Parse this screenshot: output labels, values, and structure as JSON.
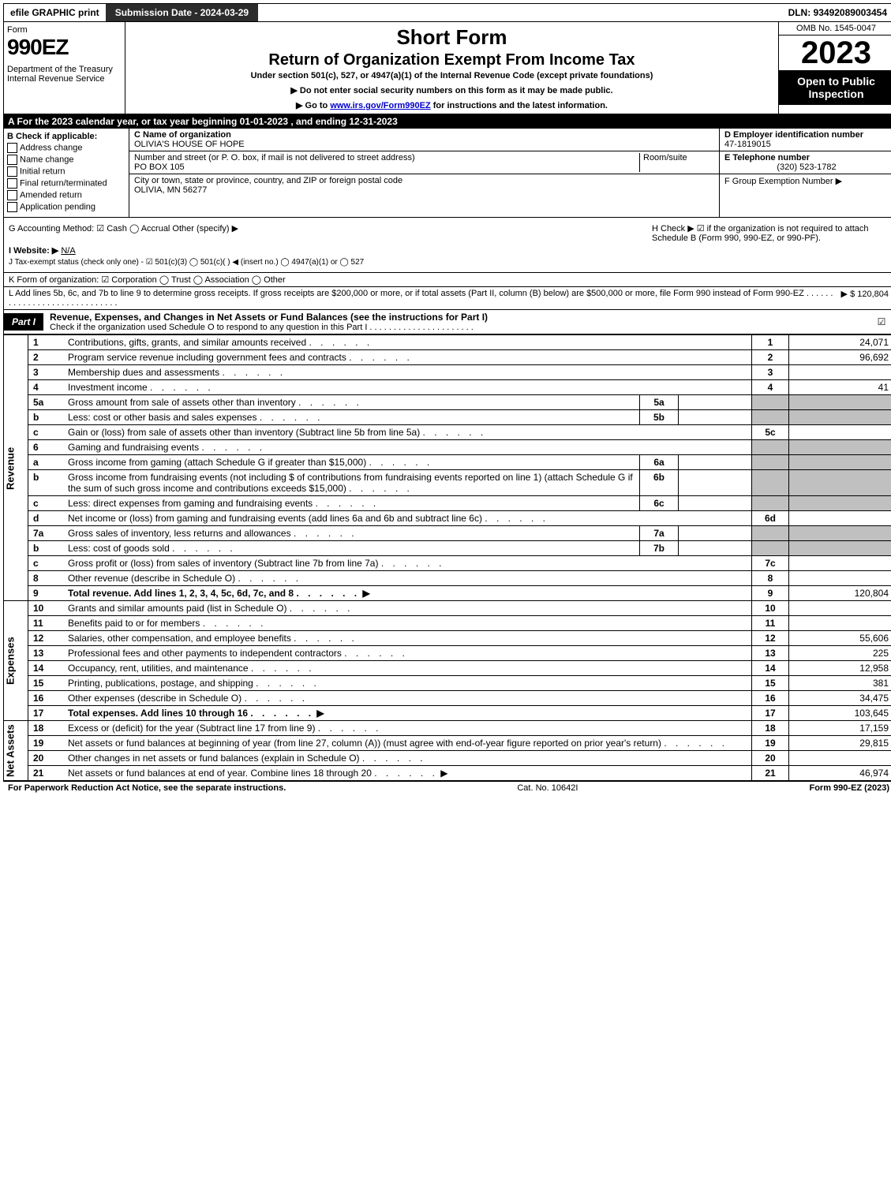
{
  "top": {
    "efile": "efile GRAPHIC print",
    "submission": "Submission Date - 2024-03-29",
    "dln": "DLN: 93492089003454"
  },
  "header": {
    "form": "Form",
    "form_number": "990EZ",
    "dept": "Department of the Treasury\nInternal Revenue Service",
    "short_form": "Short Form",
    "title": "Return of Organization Exempt From Income Tax",
    "subtitle": "Under section 501(c), 527, or 4947(a)(1) of the Internal Revenue Code (except private foundations)",
    "note1": "▶ Do not enter social security numbers on this form as it may be made public.",
    "note2_pre": "▶ Go to ",
    "note2_link": "www.irs.gov/Form990EZ",
    "note2_post": " for instructions and the latest information.",
    "omb": "OMB No. 1545-0047",
    "year": "2023",
    "open": "Open to Public Inspection"
  },
  "sectionA": "A  For the 2023 calendar year, or tax year beginning 01-01-2023 , and ending 12-31-2023",
  "colB": {
    "title": "B  Check if applicable:",
    "opts": [
      "Address change",
      "Name change",
      "Initial return",
      "Final return/terminated",
      "Amended return",
      "Application pending"
    ]
  },
  "colC": {
    "name_label": "C Name of organization",
    "name": "OLIVIA'S HOUSE OF HOPE",
    "addr_label": "Number and street (or P. O. box, if mail is not delivered to street address)",
    "room_label": "Room/suite",
    "addr": "PO BOX 105",
    "city_label": "City or town, state or province, country, and ZIP or foreign postal code",
    "city": "OLIVIA, MN  56277"
  },
  "colDE": {
    "d_label": "D Employer identification number",
    "d_value": "47-1819015",
    "e_label": "E Telephone number",
    "e_value": "(320) 523-1782",
    "f_label": "F Group Exemption Number   ▶"
  },
  "misc": {
    "g": "G Accounting Method:  ☑ Cash  ◯ Accrual  Other (specify) ▶",
    "h": "H  Check ▶ ☑ if the organization is not required to attach Schedule B (Form 990, 990-EZ, or 990-PF).",
    "i_label": "I Website: ▶",
    "i_value": "N/A",
    "j": "J Tax-exempt status (check only one) - ☑ 501(c)(3) ◯ 501(c)(  ) ◀ (insert no.) ◯ 4947(a)(1) or ◯ 527"
  },
  "lineK": "K Form of organization:  ☑ Corporation  ◯ Trust  ◯ Association  ◯ Other",
  "lineL": {
    "text": "L Add lines 5b, 6c, and 7b to line 9 to determine gross receipts. If gross receipts are $200,000 or more, or if total assets (Part II, column (B) below) are $500,000 or more, file Form 990 instead of Form 990-EZ  . . . . . . . . . . . . . . . . . . . . . . . . . . . . .",
    "amount": "▶ $ 120,804"
  },
  "part1": {
    "tag": "Part I",
    "title": "Revenue, Expenses, and Changes in Net Assets or Fund Balances (see the instructions for Part I)",
    "sub": "Check if the organization used Schedule O to respond to any question in this Part I  . . . . . . . . . . . . . . . . . . . . . .",
    "checked": "☑"
  },
  "lines": {
    "revenue_label": "Revenue",
    "expenses_label": "Expenses",
    "net_label": "Net Assets",
    "rows": [
      {
        "n": "1",
        "d": "Contributions, gifts, grants, and similar amounts received",
        "r": "1",
        "a": "24,071"
      },
      {
        "n": "2",
        "d": "Program service revenue including government fees and contracts",
        "r": "2",
        "a": "96,692"
      },
      {
        "n": "3",
        "d": "Membership dues and assessments",
        "r": "3",
        "a": ""
      },
      {
        "n": "4",
        "d": "Investment income",
        "r": "4",
        "a": "41"
      },
      {
        "n": "5a",
        "d": "Gross amount from sale of assets other than inventory",
        "sn": "5a"
      },
      {
        "n": "b",
        "d": "Less: cost or other basis and sales expenses",
        "sn": "5b"
      },
      {
        "n": "c",
        "d": "Gain or (loss) from sale of assets other than inventory (Subtract line 5b from line 5a)",
        "r": "5c",
        "a": ""
      },
      {
        "n": "6",
        "d": "Gaming and fundraising events"
      },
      {
        "n": "a",
        "d": "Gross income from gaming (attach Schedule G if greater than $15,000)",
        "sn": "6a"
      },
      {
        "n": "b",
        "d": "Gross income from fundraising events (not including $                         of contributions from fundraising events reported on line 1) (attach Schedule G if the sum of such gross income and contributions exceeds $15,000)",
        "sn": "6b"
      },
      {
        "n": "c",
        "d": "Less: direct expenses from gaming and fundraising events",
        "sn": "6c"
      },
      {
        "n": "d",
        "d": "Net income or (loss) from gaming and fundraising events (add lines 6a and 6b and subtract line 6c)",
        "r": "6d",
        "a": ""
      },
      {
        "n": "7a",
        "d": "Gross sales of inventory, less returns and allowances",
        "sn": "7a"
      },
      {
        "n": "b",
        "d": "Less: cost of goods sold",
        "sn": "7b"
      },
      {
        "n": "c",
        "d": "Gross profit or (loss) from sales of inventory (Subtract line 7b from line 7a)",
        "r": "7c",
        "a": ""
      },
      {
        "n": "8",
        "d": "Other revenue (describe in Schedule O)",
        "r": "8",
        "a": ""
      },
      {
        "n": "9",
        "d": "Total revenue. Add lines 1, 2, 3, 4, 5c, 6d, 7c, and 8",
        "r": "9",
        "a": "120,804",
        "bold": true,
        "arrow": true
      }
    ],
    "exp": [
      {
        "n": "10",
        "d": "Grants and similar amounts paid (list in Schedule O)",
        "r": "10",
        "a": ""
      },
      {
        "n": "11",
        "d": "Benefits paid to or for members",
        "r": "11",
        "a": ""
      },
      {
        "n": "12",
        "d": "Salaries, other compensation, and employee benefits",
        "r": "12",
        "a": "55,606"
      },
      {
        "n": "13",
        "d": "Professional fees and other payments to independent contractors",
        "r": "13",
        "a": "225"
      },
      {
        "n": "14",
        "d": "Occupancy, rent, utilities, and maintenance",
        "r": "14",
        "a": "12,958"
      },
      {
        "n": "15",
        "d": "Printing, publications, postage, and shipping",
        "r": "15",
        "a": "381"
      },
      {
        "n": "16",
        "d": "Other expenses (describe in Schedule O)",
        "r": "16",
        "a": "34,475"
      },
      {
        "n": "17",
        "d": "Total expenses. Add lines 10 through 16",
        "r": "17",
        "a": "103,645",
        "bold": true,
        "arrow": true
      }
    ],
    "net": [
      {
        "n": "18",
        "d": "Excess or (deficit) for the year (Subtract line 17 from line 9)",
        "r": "18",
        "a": "17,159"
      },
      {
        "n": "19",
        "d": "Net assets or fund balances at beginning of year (from line 27, column (A)) (must agree with end-of-year figure reported on prior year's return)",
        "r": "19",
        "a": "29,815"
      },
      {
        "n": "20",
        "d": "Other changes in net assets or fund balances (explain in Schedule O)",
        "r": "20",
        "a": ""
      },
      {
        "n": "21",
        "d": "Net assets or fund balances at end of year. Combine lines 18 through 20",
        "r": "21",
        "a": "46,974",
        "arrow": true
      }
    ]
  },
  "footer": {
    "left": "For Paperwork Reduction Act Notice, see the separate instructions.",
    "center": "Cat. No. 10642I",
    "right": "Form 990-EZ (2023)"
  }
}
